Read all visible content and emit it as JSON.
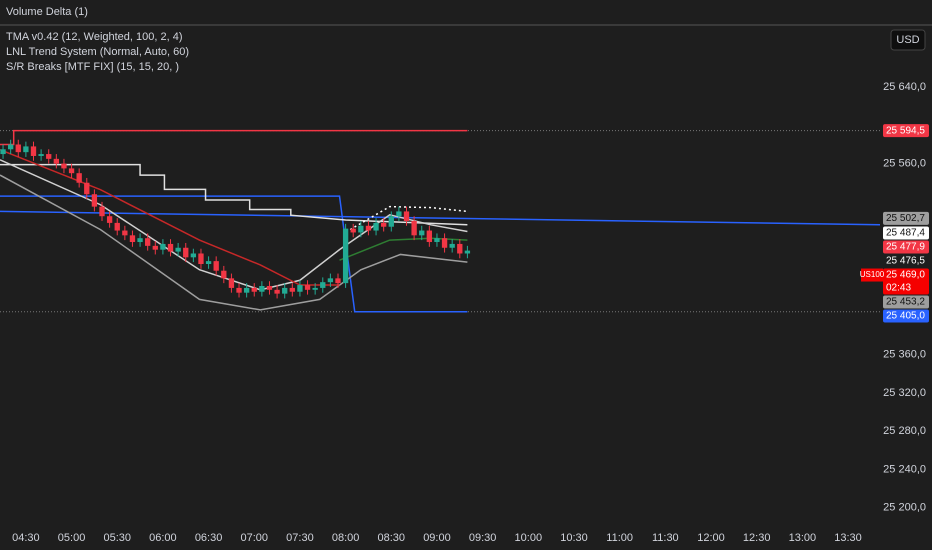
{
  "chart_data": {
    "type": "candlestick",
    "pane_title": "Volume Delta (1)",
    "indicators": [
      "TMA v0.42 (12, Weighted, 100, 2, 4)",
      "LNL Trend System (Normal, Auto, 60)",
      "S/R Breaks [MTF FIX] (15, 15, 20, )"
    ],
    "currency": "USD",
    "up_color": "#22ab94",
    "down_color": "#f23645",
    "x": [
      255,
      260,
      265,
      270,
      275,
      280,
      285,
      290,
      295,
      300,
      305,
      310,
      315,
      320,
      325,
      330,
      335,
      340,
      345,
      350,
      355,
      360,
      365,
      370,
      375,
      380,
      385,
      390,
      395,
      400,
      405,
      410,
      415,
      420,
      425,
      430,
      435,
      440,
      445,
      450,
      455,
      460,
      465,
      470,
      475,
      480,
      485,
      490,
      495,
      500,
      505,
      510,
      515,
      520,
      525,
      530,
      535,
      540,
      545,
      550,
      555,
      560
    ],
    "open": [
      25570,
      25575,
      25580,
      25572,
      25578,
      25568,
      25570,
      25565,
      25560,
      25555,
      25550,
      25540,
      25528,
      25515,
      25505,
      25498,
      25490,
      25485,
      25478,
      25482,
      25474,
      25470,
      25476,
      25468,
      25472,
      25462,
      25466,
      25455,
      25458,
      25448,
      25440,
      25430,
      25425,
      25430,
      25426,
      25432,
      25428,
      25424,
      25430,
      25426,
      25433,
      25428,
      25430,
      25436,
      25440,
      25435,
      25492,
      25488,
      25495,
      25490,
      25498,
      25494,
      25505,
      25510,
      25500,
      25485,
      25490,
      25478,
      25482,
      25472,
      25476,
      25466
    ],
    "high": [
      25580,
      25585,
      25585,
      25583,
      25583,
      25575,
      25575,
      25570,
      25565,
      25560,
      25555,
      25545,
      25533,
      25520,
      25510,
      25503,
      25495,
      25490,
      25487,
      25487,
      25479,
      25481,
      25481,
      25477,
      25477,
      25471,
      25471,
      25463,
      25463,
      25453,
      25445,
      25435,
      25435,
      25435,
      25437,
      25437,
      25433,
      25435,
      25435,
      25438,
      25438,
      25435,
      25441,
      25445,
      25445,
      25497,
      25497,
      25500,
      25500,
      25503,
      25503,
      25510,
      25515,
      25515,
      25505,
      25495,
      25495,
      25487,
      25487,
      25481,
      25481,
      25474
    ],
    "low": [
      25565,
      25570,
      25567,
      25567,
      25563,
      25563,
      25560,
      25555,
      25550,
      25545,
      25535,
      25523,
      25510,
      25500,
      25493,
      25485,
      25480,
      25473,
      25473,
      25469,
      25465,
      25465,
      25463,
      25463,
      25457,
      25457,
      25450,
      25450,
      25443,
      25435,
      25425,
      25420,
      25420,
      25421,
      25421,
      25423,
      25419,
      25419,
      25421,
      25421,
      25423,
      25423,
      25425,
      25431,
      25430,
      25430,
      25483,
      25483,
      25485,
      25485,
      25489,
      25489,
      25500,
      25495,
      25480,
      25480,
      25473,
      25473,
      25467,
      25467,
      25461,
      25461
    ],
    "close": [
      25575,
      25580,
      25572,
      25578,
      25568,
      25570,
      25565,
      25560,
      25555,
      25550,
      25540,
      25528,
      25515,
      25505,
      25498,
      25490,
      25485,
      25478,
      25482,
      25474,
      25470,
      25476,
      25468,
      25472,
      25462,
      25466,
      25455,
      25458,
      25448,
      25440,
      25430,
      25425,
      25430,
      25426,
      25432,
      25428,
      25424,
      25430,
      25426,
      25433,
      25428,
      25430,
      25436,
      25440,
      25435,
      25492,
      25488,
      25495,
      25490,
      25498,
      25494,
      25505,
      25510,
      25500,
      25485,
      25490,
      25478,
      25482,
      25472,
      25476,
      25466,
      25469
    ],
    "lines": [
      {
        "color": "#f23645",
        "x": [
          253,
          262,
          262,
          560
        ],
        "values": [
          25580,
          25580,
          25594.5,
          25594.5
        ]
      },
      {
        "color": "#2962ff",
        "x": [
          253,
          476,
          486,
          560
        ],
        "values": [
          25526,
          25526,
          25405,
          25405
        ]
      },
      {
        "color": "#2962ff",
        "x": [
          253,
          831
        ],
        "values": [
          25510,
          25496
        ]
      },
      {
        "color": "#e0e0e0",
        "x": [
          253,
          345,
          345,
          361,
          361,
          388,
          388,
          417,
          417,
          444,
          444,
          480,
          560
        ],
        "values": [
          25559,
          25559,
          25548,
          25548,
          25533,
          25533,
          25522,
          25522,
          25512,
          25512,
          25506,
          25501,
          25496
        ]
      },
      {
        "color": "#d0d0d0",
        "x": [
          253,
          319,
          384,
          424,
          450,
          476,
          509,
          536,
          560
        ],
        "values": [
          25564,
          25517,
          25449,
          25428,
          25438,
          25470,
          25506.5,
          25496,
          25489
        ]
      },
      {
        "color": "#9e9e9e",
        "x": [
          253,
          319,
          384,
          424,
          463,
          490,
          516,
          560
        ],
        "values": [
          25548,
          25491,
          25418,
          25407,
          25418,
          25449,
          25465,
          25457
        ]
      },
      {
        "color": "#c62828",
        "x": [
          253,
          319,
          384,
          424,
          450,
          476
        ],
        "values": [
          25574.6,
          25532.7,
          25480,
          25454,
          25433,
          25433
        ]
      },
      {
        "color": "#2e7d32",
        "x": [
          476,
          509,
          536,
          560
        ],
        "values": [
          25459,
          25480,
          25482,
          25480
        ]
      },
      {
        "color": "#ffffff",
        "dash": true,
        "x": [
          483,
          509,
          536,
          560
        ],
        "values": [
          25491,
          25515,
          25514,
          25510
        ]
      }
    ],
    "xlim": [
      253,
      831
    ],
    "ylim": [
      25182,
      25705
    ],
    "xticks": [
      {
        "value": 270,
        "label": "04:30"
      },
      {
        "value": 300,
        "label": "05:00"
      },
      {
        "value": 330,
        "label": "05:30"
      },
      {
        "value": 360,
        "label": "06:00"
      },
      {
        "value": 390,
        "label": "06:30"
      },
      {
        "value": 420,
        "label": "07:00"
      },
      {
        "value": 450,
        "label": "07:30"
      },
      {
        "value": 480,
        "label": "08:00"
      },
      {
        "value": 510,
        "label": "08:30"
      },
      {
        "value": 540,
        "label": "09:00"
      },
      {
        "value": 570,
        "label": "09:30"
      },
      {
        "value": 600,
        "label": "10:00"
      },
      {
        "value": 630,
        "label": "10:30"
      },
      {
        "value": 660,
        "label": "11:00"
      },
      {
        "value": 690,
        "label": "11:30"
      },
      {
        "value": 720,
        "label": "12:00"
      },
      {
        "value": 750,
        "label": "12:30"
      },
      {
        "value": 780,
        "label": "13:00"
      },
      {
        "value": 810,
        "label": "13:30"
      }
    ],
    "yticks": [
      {
        "value": 25640,
        "label": "25 640,0"
      },
      {
        "value": 25560,
        "label": "25 560,0"
      },
      {
        "value": 25360,
        "label": "25 360,0"
      },
      {
        "value": 25320,
        "label": "25 320,0"
      },
      {
        "value": 25280,
        "label": "25 280,0"
      },
      {
        "value": 25240,
        "label": "25 240,0"
      },
      {
        "value": 25200,
        "label": "25 200,0"
      }
    ],
    "price_labels": [
      {
        "value": 25594.5,
        "label": "25 594,5",
        "color": "#f23645",
        "dotted": true
      },
      {
        "value": 25502.7,
        "label": "25 502,7",
        "color": "#9e9e9e"
      },
      {
        "value": 25487.4,
        "label": "25 487,4",
        "color": "#ffffff"
      },
      {
        "value": 25477.9,
        "label": "25 477,9",
        "color": "#f23645"
      },
      {
        "value": 25476.5,
        "label": "25 476,5",
        "color": "#1e1e1e"
      },
      {
        "value": 25469.0,
        "label": "25 469,0",
        "color": "#f50000",
        "symbol": "US100",
        "countdown": "02:43"
      },
      {
        "value": 25453.2,
        "label": "25 453,2",
        "color": "#9e9e9e"
      },
      {
        "value": 25405.0,
        "label": "25 405,0",
        "color": "#2962ff",
        "dotted": true
      }
    ]
  }
}
